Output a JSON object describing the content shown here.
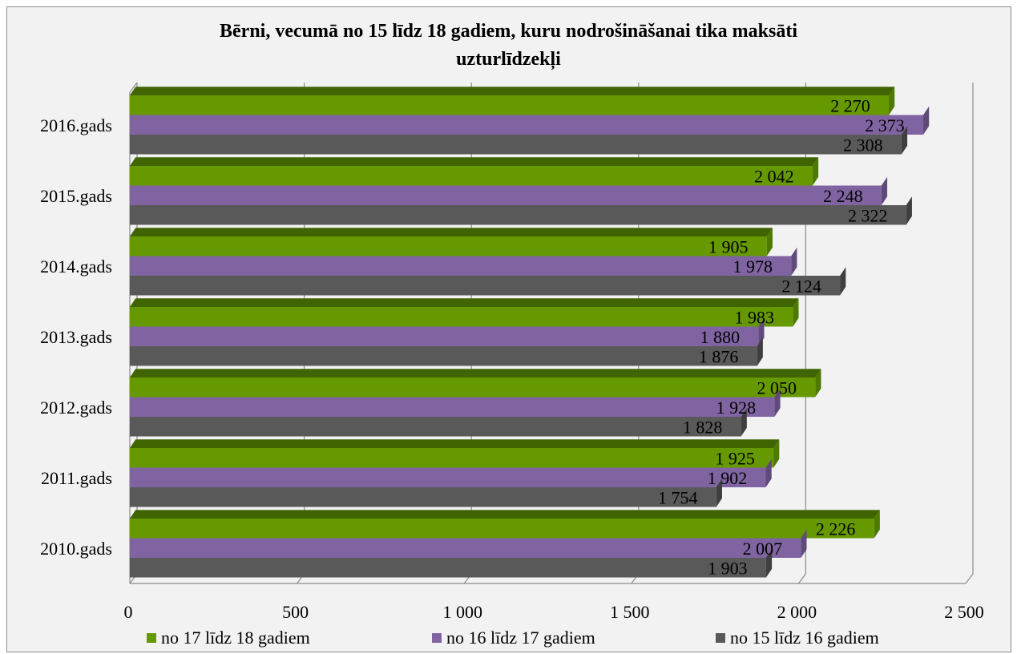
{
  "chart_data": {
    "type": "bar",
    "orientation": "horizontal",
    "title": "Bērni, vecumā no 15 līdz 18 gadiem, kuru nodrošināšanai tika maksāti uzturlīdzekļi",
    "title_lines": [
      "Bērni, vecumā no 15 līdz 18 gadiem, kuru nodrošināšanai tika maksāti",
      "uzturlīdzekļi"
    ],
    "categories": [
      "2016.gads",
      "2015.gads",
      "2014.gads",
      "2013.gads",
      "2012.gads",
      "2011.gads",
      "2010.gads"
    ],
    "series": [
      {
        "name": "no 17 līdz 18 gadiem",
        "color": "#669900",
        "side_color": "#4d7a00",
        "top_color": "#3f6400",
        "values": [
          2270,
          2042,
          1905,
          1983,
          2050,
          1925,
          2226
        ],
        "labels": [
          "2 270",
          "2 042",
          "1 905",
          "1 983",
          "2 050",
          "1 925",
          "2 226"
        ]
      },
      {
        "name": "no 16 līdz 17 gadiem",
        "color": "#8064a2",
        "side_color": "#5f4a7a",
        "top_color": "#4e3d66",
        "values": [
          2373,
          2248,
          1978,
          1880,
          1928,
          1902,
          2007
        ],
        "labels": [
          "2 373",
          "2 248",
          "1 978",
          "1 880",
          "1 928",
          "1 902",
          "2 007"
        ]
      },
      {
        "name": "no 15 līdz 16 gadiem",
        "color": "#595959",
        "side_color": "#3f3f3f",
        "top_color": "#333333",
        "values": [
          2308,
          2322,
          2124,
          1876,
          1828,
          1754,
          1903
        ],
        "labels": [
          "2 308",
          "2 322",
          "2 124",
          "1 876",
          "1 828",
          "1 754",
          "1 903"
        ]
      }
    ],
    "xlim": [
      0,
      2500
    ],
    "xticks": [
      0,
      500,
      1000,
      1500,
      2000,
      2500
    ],
    "xtick_labels": [
      "0",
      "500",
      "1 000",
      "1 500",
      "2 000",
      "2 500"
    ],
    "grid": true,
    "legend_position": "bottom"
  }
}
